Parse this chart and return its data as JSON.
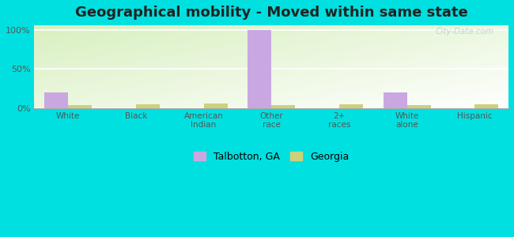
{
  "title": "Geographical mobility - Moved within same state",
  "categories": [
    "White",
    "Black",
    "American\nIndian",
    "Other\nrace",
    "2+\nraces",
    "White\nalone",
    "Hispanic"
  ],
  "talbotton_values": [
    20,
    0,
    0,
    100,
    0,
    20,
    0
  ],
  "georgia_values": [
    4,
    5,
    6,
    4,
    5,
    4,
    5
  ],
  "talbotton_color": "#c9a8e2",
  "georgia_color": "#cdd17a",
  "bg_outer": "#00e0e0",
  "yticks": [
    0,
    50,
    100
  ],
  "ytick_labels": [
    "0%",
    "50%",
    "100%"
  ],
  "bar_width": 0.35,
  "legend_talbotton": "Talbotton, GA",
  "legend_georgia": "Georgia",
  "title_fontsize": 13,
  "watermark": "City-Data.com"
}
